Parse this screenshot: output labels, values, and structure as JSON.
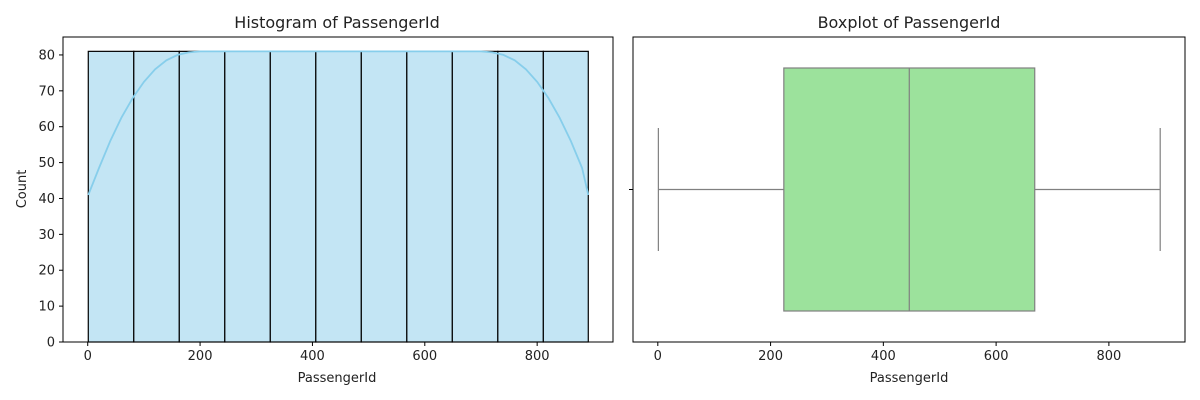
{
  "colors": {
    "hist_fill": "#c3e5f4",
    "hist_edge": "#000000",
    "kde_line": "#87ceeb",
    "box_fill": "#9ce29c",
    "box_line": "#808080",
    "axes": "#000000"
  },
  "chart_data": [
    {
      "type": "bar",
      "title": "Histogram of PassengerId",
      "xlabel": "PassengerId",
      "ylabel": "Count",
      "xlim": [
        -44,
        935
      ],
      "ylim": [
        0,
        85
      ],
      "xticks": [
        0,
        200,
        400,
        600,
        800
      ],
      "yticks": [
        0,
        10,
        20,
        30,
        40,
        50,
        60,
        70,
        80
      ],
      "bin_edges": [
        1,
        82,
        163,
        244,
        325,
        406,
        487,
        568,
        649,
        730,
        811,
        891
      ],
      "counts": [
        81,
        81,
        81,
        81,
        81,
        81,
        81,
        81,
        81,
        81,
        81
      ],
      "kde": {
        "x": [
          1,
          20,
          40,
          60,
          80,
          100,
          120,
          140,
          160,
          180,
          200,
          250,
          300,
          400,
          500,
          600,
          700,
          720,
          740,
          760,
          780,
          800,
          820,
          840,
          860,
          880,
          891
        ],
        "y": [
          41,
          48.5,
          56,
          62.5,
          68,
          72.5,
          76,
          78.5,
          80,
          80.7,
          81,
          81,
          81,
          81,
          81,
          81,
          81,
          80.7,
          80,
          78.5,
          76,
          72.5,
          68,
          62.5,
          56,
          48.5,
          41
        ]
      }
    },
    {
      "type": "box",
      "title": "Boxplot of PassengerId",
      "xlabel": "PassengerId",
      "ylabel": "",
      "xlim": [
        -44,
        935
      ],
      "xticks": [
        0,
        200,
        400,
        600,
        800
      ],
      "stats": {
        "min": 1,
        "q1": 223.5,
        "median": 446,
        "q3": 668.5,
        "max": 891
      }
    }
  ]
}
